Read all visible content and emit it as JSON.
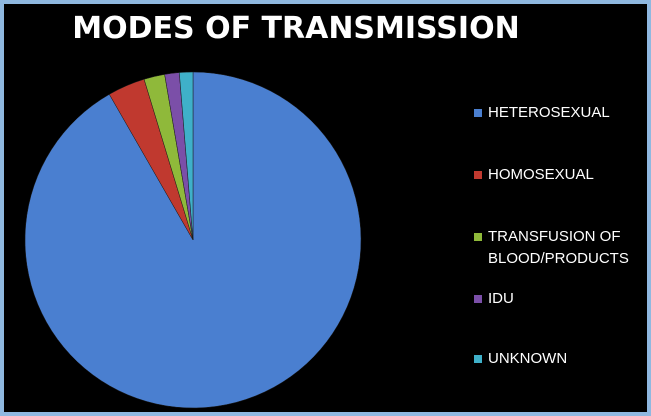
{
  "chart_data": {
    "type": "pie",
    "title": "MODES OF TRANSMISSION",
    "categories": [
      "HETEROSEXUAL",
      "HOMOSEXUAL",
      "TRANSFUSION OF BLOOD/PRODUCTS",
      "IDU",
      "UNKNOWN"
    ],
    "values": [
      91.7,
      3.6,
      2.0,
      1.4,
      1.3
    ],
    "colors": [
      "#4a7fd0",
      "#c0392f",
      "#8fb93a",
      "#7b4fa8",
      "#3fb0c9"
    ],
    "legend": "right"
  }
}
